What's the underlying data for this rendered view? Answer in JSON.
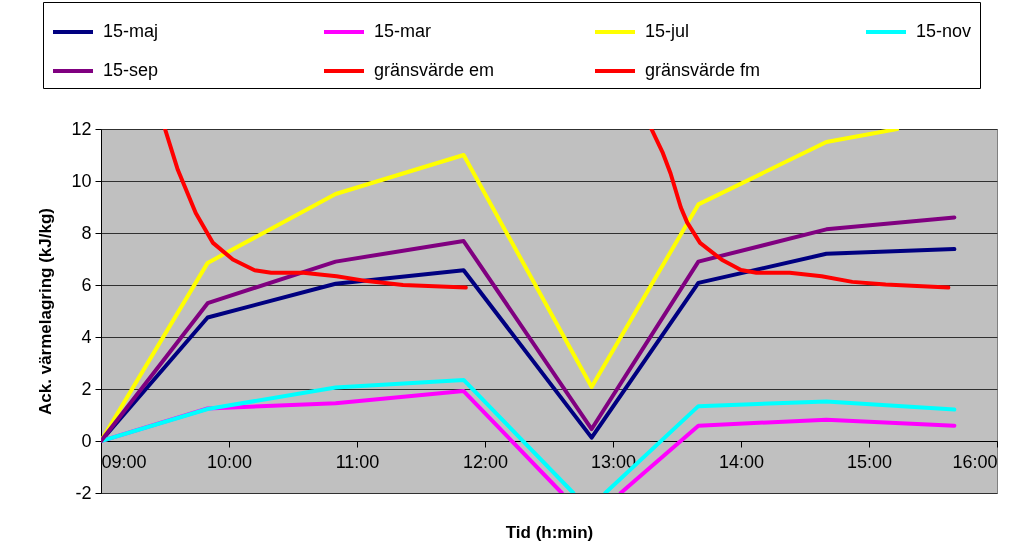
{
  "chart_data": {
    "type": "line",
    "xlabel": "Tid (h:min)",
    "ylabel": "Ack. värmelagring (kJ/kg)",
    "x": [
      9,
      9.833,
      10.833,
      11.833,
      12.833,
      13.667,
      14.667,
      15.667
    ],
    "series": [
      {
        "name": "15-maj",
        "color": "#000080",
        "values": [
          0,
          4.75,
          6.05,
          6.57,
          0.13,
          6.08,
          7.2,
          7.38
        ]
      },
      {
        "name": "15-mar",
        "color": "#ff00ff",
        "x": [
          9,
          9.833,
          10.833,
          11.833,
          12.6,
          12.833,
          13.06,
          13.667,
          14.667,
          15.667
        ],
        "values": [
          0,
          1.25,
          1.45,
          1.92,
          -2,
          null,
          -2,
          0.59,
          0.82,
          0.59
        ]
      },
      {
        "name": "15-jul",
        "color": "#ffff00",
        "x": [
          9,
          9.833,
          10.833,
          11.833,
          12.833,
          13.667,
          14.667,
          15.22
        ],
        "values": [
          0,
          6.85,
          9.5,
          11.0,
          2.08,
          9.1,
          11.5,
          12
        ]
      },
      {
        "name": "15-nov",
        "color": "#00ffff",
        "x": [
          9,
          9.833,
          10.833,
          11.833,
          12.69,
          12.833,
          12.94,
          13.667,
          14.667,
          15.667
        ],
        "values": [
          0,
          1.23,
          2.06,
          2.35,
          -2,
          null,
          -2,
          1.34,
          1.52,
          1.21
        ]
      },
      {
        "name": "15-sep",
        "color": "#800080",
        "values": [
          0,
          5.3,
          6.9,
          7.69,
          0.46,
          6.9,
          8.14,
          8.6
        ]
      },
      {
        "name": "gränsvärde em",
        "color": "#ff0000",
        "x": [
          13.3,
          13.39,
          13.45,
          13.53,
          13.58,
          13.68,
          13.85,
          14.0,
          14.12,
          14.38,
          14.63,
          14.87,
          15.13,
          15.62
        ],
        "values": [
          12.0,
          11.07,
          10.29,
          8.98,
          8.4,
          7.62,
          6.97,
          6.58,
          6.47,
          6.47,
          6.34,
          6.12,
          6.02,
          5.9
        ]
      },
      {
        "name": "gränsvärde fm",
        "color": "#ff0000",
        "x": [
          9.5,
          9.6,
          9.74,
          9.875,
          10.03,
          10.2,
          10.33,
          10.58,
          10.84,
          11.08,
          11.36,
          11.85
        ],
        "values": [
          12.0,
          10.43,
          8.77,
          7.62,
          6.98,
          6.57,
          6.47,
          6.47,
          6.34,
          6.15,
          6.0,
          5.9
        ]
      }
    ],
    "xlim": [
      9,
      16
    ],
    "xticks": [
      {
        "value": 9,
        "label": "09:00"
      },
      {
        "value": 10,
        "label": "10:00"
      },
      {
        "value": 11,
        "label": "11:00"
      },
      {
        "value": 12,
        "label": "12:00"
      },
      {
        "value": 13,
        "label": "13:00"
      },
      {
        "value": 14,
        "label": "14:00"
      },
      {
        "value": 15,
        "label": "15:00"
      },
      {
        "value": 16,
        "label": "16:00"
      }
    ],
    "ylim": [
      -2,
      12
    ],
    "yticks": [
      -2,
      0,
      2,
      4,
      6,
      8,
      10,
      12
    ],
    "grid": "y",
    "legend": "top",
    "marker": "none",
    "line_style": "solid"
  }
}
